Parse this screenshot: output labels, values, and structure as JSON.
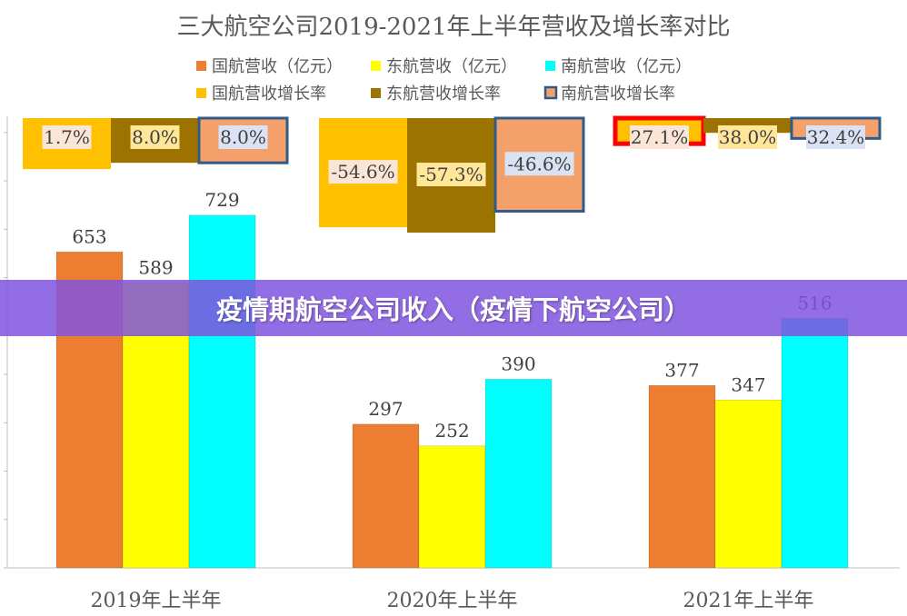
{
  "chart_data": {
    "type": "bar",
    "title": "三大航空公司2019-2021年上半年营收及增长率对比",
    "categories": [
      "2019年上半年",
      "2020年上半年",
      "2021年上半年"
    ],
    "series": [
      {
        "name": "国航营收（亿元）",
        "color": "#ED7D31",
        "values": [
          653,
          297,
          377
        ]
      },
      {
        "name": "东航营收（亿元）",
        "color": "#FFFF00",
        "values": [
          589,
          252,
          347
        ]
      },
      {
        "name": "南航营收（亿元）",
        "color": "#00FFFF",
        "values": [
          729,
          390,
          516
        ]
      }
    ],
    "growth_series": [
      {
        "name": "国航营收增长率",
        "color": "#FFC000",
        "values": [
          1.7,
          -54.6,
          27.1
        ],
        "labels": [
          "1.7%",
          "-54.6%",
          "27.1%"
        ]
      },
      {
        "name": "东航营收增长率",
        "color": "#9C7300",
        "values": [
          8.0,
          -57.3,
          38.0
        ],
        "labels": [
          "8.0%",
          "-57.3%",
          "38.0%"
        ]
      },
      {
        "name": "南航营收增长率",
        "color": "#F4A06A",
        "values": [
          8.0,
          -46.6,
          32.4
        ],
        "labels": [
          "8.0%",
          "-46.6%",
          "32.4%"
        ]
      }
    ],
    "ylim": [
      0,
      800
    ],
    "legend_position": "top",
    "grid": false
  },
  "banner": {
    "text": "疫情期航空公司收入（疫情下航空公司）"
  }
}
